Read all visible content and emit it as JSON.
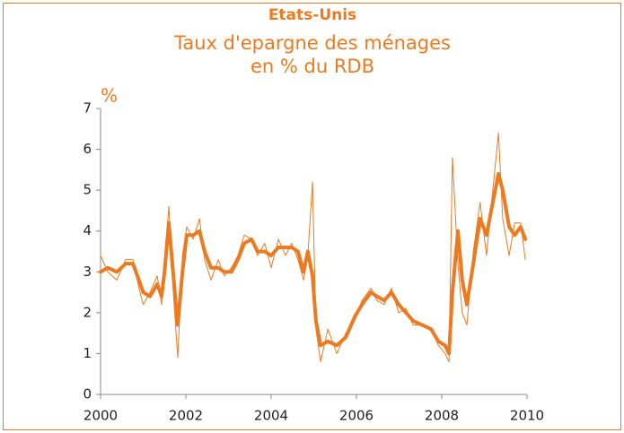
{
  "chart_data": {
    "type": "line",
    "header": "Etats-Unis",
    "title_lines": [
      "Taux d'epargne des ménages",
      "en % du RDB"
    ],
    "ylabel": "%",
    "x": [
      2000.0,
      2000.17,
      2000.38,
      2000.59,
      2000.76,
      2000.9,
      2001.0,
      2001.16,
      2001.33,
      2001.43,
      2001.5,
      2001.6,
      2001.7,
      2001.81,
      2001.92,
      2002.02,
      2002.17,
      2002.32,
      2002.44,
      2002.59,
      2002.76,
      2002.9,
      2003.07,
      2003.22,
      2003.37,
      2003.54,
      2003.68,
      2003.85,
      2004.0,
      2004.17,
      2004.34,
      2004.48,
      2004.63,
      2004.76,
      2004.86,
      2004.97,
      2005.05,
      2005.16,
      2005.33,
      2005.54,
      2005.75,
      2005.96,
      2006.13,
      2006.34,
      2006.48,
      2006.65,
      2006.82,
      2006.99,
      2007.16,
      2007.33,
      2007.54,
      2007.75,
      2007.92,
      2008.08,
      2008.17,
      2008.25,
      2008.38,
      2008.48,
      2008.59,
      2008.74,
      2008.9,
      2009.05,
      2009.16,
      2009.33,
      2009.43,
      2009.58,
      2009.71,
      2009.85,
      2009.96
    ],
    "series": [
      {
        "color": "#ec7a21",
        "width": 1,
        "values": [
          3.4,
          3.0,
          2.8,
          3.3,
          3.3,
          2.6,
          2.2,
          2.5,
          2.9,
          2.2,
          3.2,
          4.6,
          2.6,
          0.9,
          3.4,
          4.1,
          3.8,
          4.3,
          3.3,
          2.8,
          3.3,
          2.9,
          3.1,
          3.4,
          3.9,
          3.8,
          3.4,
          3.7,
          3.1,
          3.8,
          3.4,
          3.7,
          3.3,
          2.8,
          3.4,
          5.2,
          1.6,
          0.8,
          1.6,
          1.0,
          1.5,
          1.8,
          2.3,
          2.6,
          2.3,
          2.2,
          2.6,
          2.0,
          2.1,
          1.7,
          1.7,
          1.6,
          1.2,
          1.0,
          0.8,
          5.8,
          3.2,
          2.0,
          1.7,
          3.5,
          4.7,
          3.4,
          4.6,
          6.4,
          4.3,
          3.4,
          4.2,
          4.2,
          3.3
        ]
      },
      {
        "color": "#ec7a21",
        "width": 4,
        "values": [
          3.0,
          3.1,
          3.0,
          3.2,
          3.2,
          2.8,
          2.5,
          2.4,
          2.7,
          2.4,
          3.0,
          4.2,
          3.0,
          1.7,
          3.0,
          3.9,
          3.9,
          4.0,
          3.5,
          3.1,
          3.1,
          3.0,
          3.0,
          3.3,
          3.7,
          3.8,
          3.5,
          3.5,
          3.4,
          3.6,
          3.6,
          3.6,
          3.5,
          3.0,
          3.5,
          2.9,
          1.8,
          1.2,
          1.3,
          1.2,
          1.4,
          1.9,
          2.2,
          2.5,
          2.4,
          2.3,
          2.5,
          2.2,
          2.0,
          1.8,
          1.7,
          1.6,
          1.3,
          1.2,
          1.0,
          2.5,
          4.0,
          2.8,
          2.2,
          3.2,
          4.3,
          3.9,
          4.5,
          5.4,
          5.0,
          4.1,
          3.9,
          4.1,
          3.8
        ]
      }
    ],
    "xlim": [
      2000,
      2010
    ],
    "xticks": [
      2000,
      2002,
      2004,
      2006,
      2008,
      2010
    ],
    "ylim": [
      0,
      7
    ],
    "yticks": [
      0,
      1,
      2,
      3,
      4,
      5,
      6,
      7
    ]
  }
}
